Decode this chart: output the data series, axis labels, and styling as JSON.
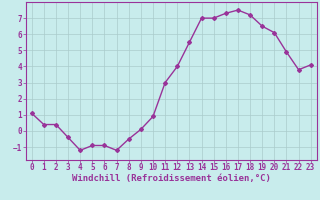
{
  "x": [
    0,
    1,
    2,
    3,
    4,
    5,
    6,
    7,
    8,
    9,
    10,
    11,
    12,
    13,
    14,
    15,
    16,
    17,
    18,
    19,
    20,
    21,
    22,
    23
  ],
  "y": [
    1.1,
    0.4,
    0.4,
    -0.4,
    -1.2,
    -0.9,
    -0.9,
    -1.2,
    -0.5,
    0.1,
    0.9,
    3.0,
    4.0,
    5.5,
    7.0,
    7.0,
    7.3,
    7.5,
    7.2,
    6.5,
    6.1,
    4.9,
    3.8,
    4.1
  ],
  "line_color": "#993399",
  "marker": "D",
  "marker_size": 2,
  "bg_color": "#c8ecec",
  "grid_color": "#aacccc",
  "xlabel": "Windchill (Refroidissement éolien,°C)",
  "xlabel_color": "#993399",
  "tick_color": "#993399",
  "ylim": [
    -1.8,
    8.0
  ],
  "yticks": [
    -1,
    0,
    1,
    2,
    3,
    4,
    5,
    6,
    7
  ],
  "xlim": [
    -0.5,
    23.5
  ],
  "xticks": [
    0,
    1,
    2,
    3,
    4,
    5,
    6,
    7,
    8,
    9,
    10,
    11,
    12,
    13,
    14,
    15,
    16,
    17,
    18,
    19,
    20,
    21,
    22,
    23
  ],
  "xlabel_fontsize": 6.5,
  "tick_fontsize": 5.5,
  "linewidth": 1.0
}
